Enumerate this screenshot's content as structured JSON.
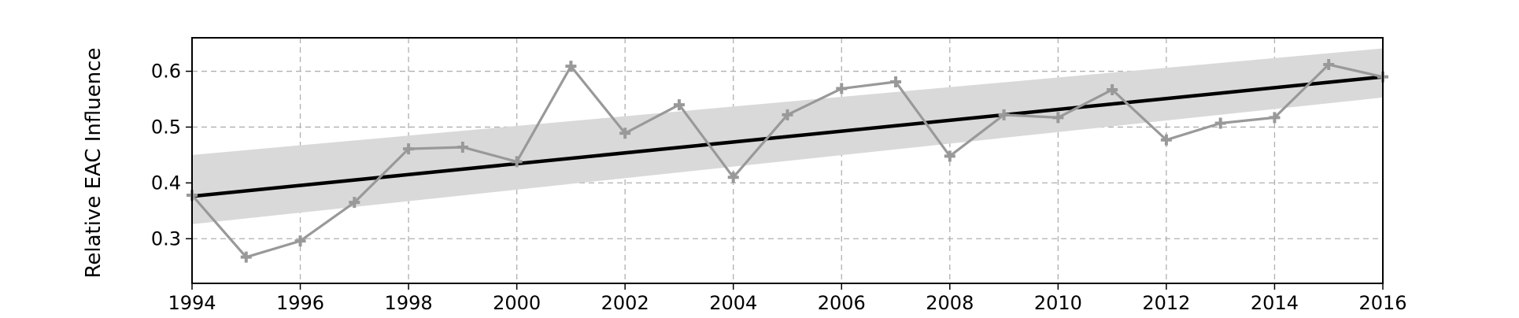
{
  "chart_data": {
    "type": "line",
    "title": "",
    "xlabel": "",
    "ylabel": "Relative EAC Influence",
    "xlim": [
      1994,
      2016
    ],
    "ylim": [
      0.22,
      0.66
    ],
    "grid": true,
    "x_ticks": [
      "1994",
      "1996",
      "1998",
      "2000",
      "2002",
      "2004",
      "2006",
      "2008",
      "2010",
      "2012",
      "2014",
      "2016"
    ],
    "y_ticks": [
      "0.3",
      "0.4",
      "0.5",
      "0.6"
    ],
    "series": [
      {
        "style": "line-with-plus-markers",
        "color": "#999999",
        "x": [
          1994,
          1995,
          1996,
          1997,
          1998,
          1999,
          2000,
          2001,
          2002,
          2003,
          2004,
          2005,
          2006,
          2007,
          2008,
          2009,
          2010,
          2011,
          2012,
          2013,
          2014,
          2015,
          2016
        ],
        "y": [
          0.378,
          0.267,
          0.296,
          0.365,
          0.461,
          0.464,
          0.438,
          0.609,
          0.489,
          0.54,
          0.41,
          0.522,
          0.569,
          0.581,
          0.448,
          0.522,
          0.517,
          0.567,
          0.477,
          0.507,
          0.517,
          0.612,
          0.59
        ]
      }
    ],
    "trend": {
      "style": "regression-line",
      "color": "#000000",
      "x": [
        1994,
        2016
      ],
      "y": [
        0.376,
        0.59
      ]
    },
    "confidence_band": {
      "style": "shaded-interval",
      "color": "#d9d9d9",
      "x": [
        1994,
        2016
      ],
      "upper": [
        0.45,
        0.641
      ],
      "lower": [
        0.326,
        0.553
      ]
    }
  }
}
